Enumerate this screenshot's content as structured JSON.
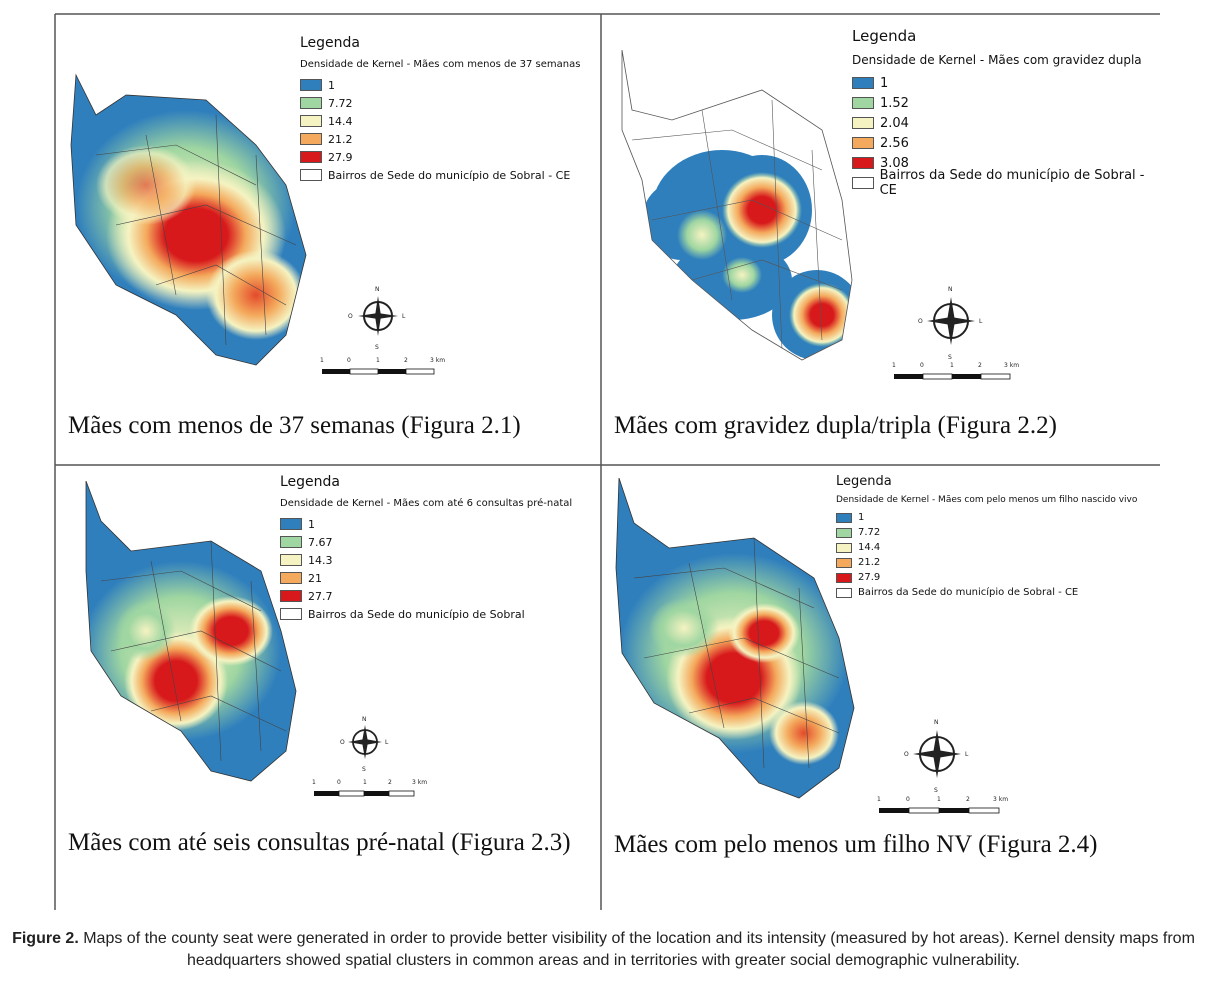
{
  "legend_title": "Legenda",
  "scale_labels": [
    "1",
    "0",
    "1",
    "2",
    "3 km"
  ],
  "compass_labels": {
    "n": "N",
    "s": "S",
    "w": "O",
    "e": "L"
  },
  "colors": {
    "c1": "#2f7fbd",
    "c2": "#9fd6a1",
    "c3": "#f5f3c2",
    "c4": "#f4a95c",
    "c5": "#d7191c"
  },
  "panels": [
    {
      "subtitle": "Densidade de Kernel - Mães com menos de 37 semanas",
      "values": [
        "1",
        "7.72",
        "14.4",
        "21.2",
        "27.9"
      ],
      "boundary_label": "Bairros de Sede do município de Sobral - CE",
      "caption": "Mães com menos de 37 semanas (Figura 2.1)"
    },
    {
      "subtitle": "Densidade de Kernel - Mães com gravidez dupla",
      "values": [
        "1",
        "1.52",
        "2.04",
        "2.56",
        "3.08"
      ],
      "boundary_label": "Bairros da Sede do município de Sobral - CE",
      "caption": "Mães com gravidez dupla/tripla (Figura 2.2)"
    },
    {
      "subtitle": "Densidade de Kernel - Mães com até 6 consultas pré-natal",
      "values": [
        "1",
        "7.67",
        "14.3",
        "21",
        "27.7"
      ],
      "boundary_label": "Bairros da Sede do município de Sobral",
      "caption": "Mães com até seis consultas pré-natal (Figura 2.3)"
    },
    {
      "subtitle": "Densidade de Kernel - Mães com pelo menos um filho nascido vivo",
      "values": [
        "1",
        "7.72",
        "14.4",
        "21.2",
        "27.9"
      ],
      "boundary_label": "Bairros da Sede do município de Sobral - CE",
      "caption": "Mães com pelo menos um filho NV (Figura 2.4)"
    }
  ],
  "figure_caption": {
    "label": "Figure 2.",
    "text": "Maps of the county seat were generated in order to provide better visibility of the location and its intensity (measured by hot areas). Kernel density maps from headquarters showed spatial clusters in common areas and in territories with greater social demographic vulnerability."
  }
}
